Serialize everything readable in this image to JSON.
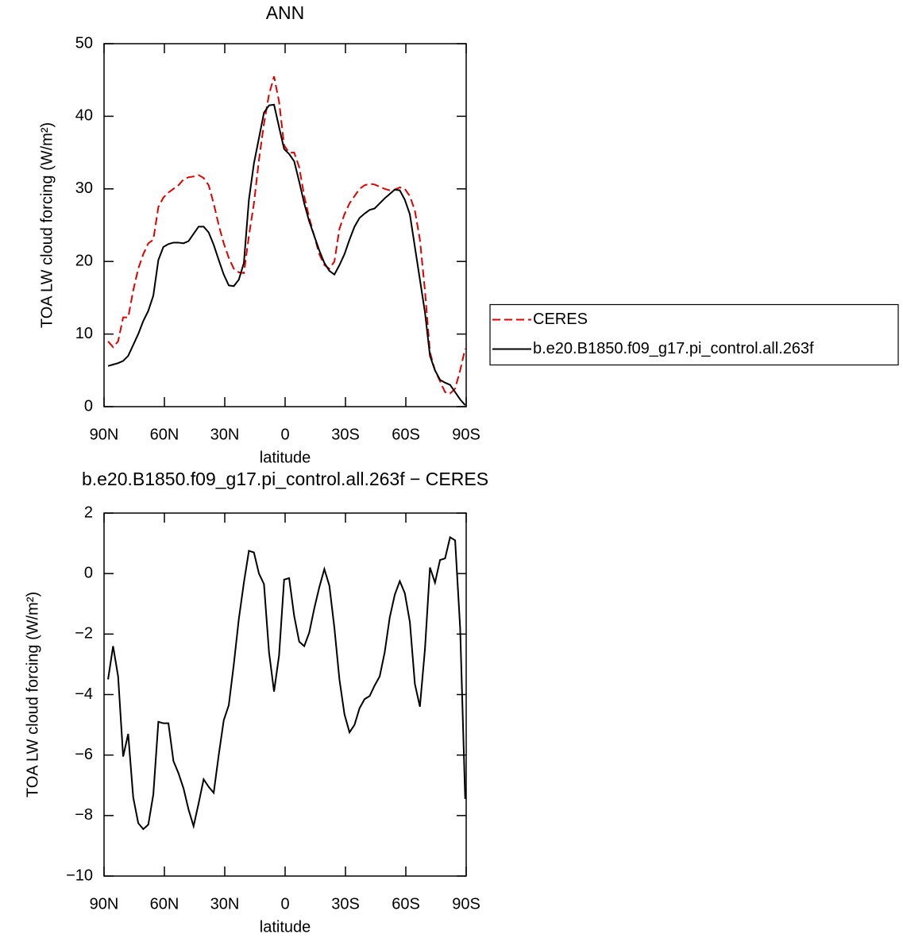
{
  "chart_data": [
    {
      "type": "line",
      "title": "ANN",
      "xlabel": "latitude",
      "ylabel": "TOA LW cloud forcing (W/m²)",
      "x": [
        88,
        85.5,
        83,
        80.5,
        78,
        75.5,
        73,
        70.5,
        68,
        65.5,
        63,
        60.5,
        58,
        55.5,
        53,
        50.5,
        48,
        45.5,
        43,
        40.5,
        38,
        35.5,
        33,
        30.5,
        28,
        25.5,
        23,
        20.5,
        18,
        15.5,
        13,
        10.5,
        8,
        5.5,
        3,
        0.5,
        -2,
        -4.5,
        -7,
        -9.5,
        -12,
        -14.5,
        -17,
        -19.5,
        -22,
        -24.5,
        -27,
        -29.5,
        -32,
        -34.5,
        -37,
        -39.5,
        -42,
        -44.5,
        -47,
        -49.5,
        -52,
        -54.5,
        -57,
        -59.5,
        -62,
        -64.5,
        -67,
        -69.5,
        -72,
        -74.5,
        -77,
        -79.5,
        -82,
        -84.5,
        -87,
        -89.5
      ],
      "series": [
        {
          "name": "CERES",
          "color": "#e00000",
          "dash": true,
          "values": [
            9,
            8.2,
            9,
            12.3,
            12.3,
            16,
            19,
            21,
            22.5,
            23,
            27.5,
            28.8,
            29.5,
            30,
            30.5,
            31.3,
            31.6,
            31.7,
            31.9,
            31.5,
            30.5,
            28,
            25,
            22.5,
            20.5,
            19,
            18.5,
            18.4,
            23.5,
            28,
            34,
            39,
            43,
            45.5,
            42,
            36,
            35,
            35,
            33,
            29,
            26,
            23.5,
            21,
            19.5,
            19,
            20,
            24.5,
            26.5,
            28,
            29,
            30,
            30.5,
            30.7,
            30.6,
            30.3,
            30,
            29.8,
            29.9,
            30.2,
            30,
            29,
            27,
            23,
            16,
            7.5,
            5,
            3.5,
            2,
            1.8,
            2.5,
            5,
            8
          ]
        },
        {
          "name": "b.e20.B1850.f09_g17.pi_control.all.263f",
          "color": "#000000",
          "dash": false,
          "values": [
            5.6,
            5.8,
            6,
            6.3,
            7,
            8.5,
            10,
            11.8,
            13.2,
            15.3,
            20.2,
            22,
            22.4,
            22.6,
            22.6,
            22.5,
            22.8,
            23.8,
            24.8,
            24.8,
            24,
            22.3,
            20.2,
            18.2,
            16.7,
            16.6,
            17.5,
            19.8,
            28.5,
            33.5,
            37,
            40.5,
            41.5,
            41.6,
            38.5,
            35.5,
            34.8,
            33.8,
            31,
            28,
            25.5,
            23.5,
            21.5,
            19.8,
            18.7,
            18.2,
            19.5,
            21,
            23,
            24.8,
            26,
            26.6,
            27.1,
            27.3,
            28,
            28.7,
            29.3,
            29.9,
            29.8,
            28.5,
            26.5,
            22,
            17.5,
            13,
            7,
            5,
            3.7,
            3.3,
            3,
            2,
            1,
            0.2
          ]
        }
      ],
      "xlim": [
        90,
        -90
      ],
      "xticks": [
        {
          "value": 90,
          "label": "90N"
        },
        {
          "value": 60,
          "label": "60N"
        },
        {
          "value": 30,
          "label": "30N"
        },
        0,
        {
          "value": -30,
          "label": "30S"
        },
        {
          "value": -60,
          "label": "60S"
        },
        {
          "value": -90,
          "label": "90S"
        }
      ],
      "ylim": [
        0,
        50
      ],
      "yticks": [
        0,
        10,
        20,
        30,
        40,
        50
      ],
      "legend": "right"
    },
    {
      "type": "line",
      "title": "b.e20.B1850.f09_g17.pi_control.all.263f − CERES",
      "xlabel": "latitude",
      "ylabel": "TOA LW cloud forcing (W/m²)",
      "x": [
        88,
        85.5,
        83,
        80.5,
        78,
        75.5,
        73,
        70.5,
        68,
        65.5,
        63,
        60.5,
        58,
        55.5,
        53,
        50.5,
        48,
        45.5,
        43,
        40.5,
        38,
        35.5,
        33,
        30.5,
        28,
        25.5,
        23,
        20.5,
        18,
        15.5,
        13,
        10.5,
        8,
        5.5,
        3,
        0.5,
        -2,
        -4.5,
        -7,
        -9.5,
        -12,
        -14.5,
        -17,
        -19.5,
        -22,
        -24.5,
        -27,
        -29.5,
        -32,
        -34.5,
        -37,
        -39.5,
        -42,
        -44.5,
        -47,
        -49.5,
        -52,
        -54.5,
        -57,
        -59.5,
        -62,
        -64.5,
        -67,
        -69.5,
        -72,
        -74.5,
        -77,
        -79.5,
        -82,
        -84.5,
        -87,
        -89.5
      ],
      "series": [
        {
          "color": "#000000",
          "dash": false,
          "values": [
            -3.5,
            -2.4,
            -3.4,
            -6.05,
            -5.3,
            -7.4,
            -8.25,
            -8.45,
            -8.3,
            -7.3,
            -4.9,
            -4.95,
            -4.95,
            -6.2,
            -6.6,
            -7.1,
            -7.8,
            -8.35,
            -7.6,
            -6.8,
            -7.05,
            -7.25,
            -6,
            -4.85,
            -4.35,
            -3,
            -1.5,
            -0.3,
            0.75,
            0.7,
            0,
            -0.35,
            -2.6,
            -3.9,
            -2.7,
            -0.2,
            -0.15,
            -1.4,
            -2.25,
            -2.4,
            -1.95,
            -1.15,
            -0.45,
            0.15,
            -0.4,
            -1.8,
            -3.5,
            -4.65,
            -5.25,
            -5,
            -4.45,
            -4.15,
            -4.05,
            -3.7,
            -3.4,
            -2.6,
            -1.45,
            -0.7,
            -0.25,
            -0.65,
            -1.6,
            -3.65,
            -4.4,
            -2.5,
            0.2,
            -0.3,
            0.45,
            0.5,
            1.2,
            1.1,
            -1.8,
            -7.45
          ]
        }
      ],
      "xlim": [
        90,
        -90
      ],
      "xticks": [
        {
          "value": 90,
          "label": "90N"
        },
        {
          "value": 60,
          "label": "60N"
        },
        {
          "value": 30,
          "label": "30N"
        },
        0,
        {
          "value": -30,
          "label": "30S"
        },
        {
          "value": -60,
          "label": "60S"
        },
        {
          "value": -90,
          "label": "90S"
        }
      ],
      "ylim": [
        -10,
        2
      ],
      "yticks": [
        {
          "value": -10,
          "label": "−10"
        },
        {
          "value": -8,
          "label": "−8"
        },
        {
          "value": -6,
          "label": "−6"
        },
        {
          "value": -4,
          "label": "−4"
        },
        {
          "value": -2,
          "label": "−2"
        },
        0,
        2
      ]
    }
  ]
}
